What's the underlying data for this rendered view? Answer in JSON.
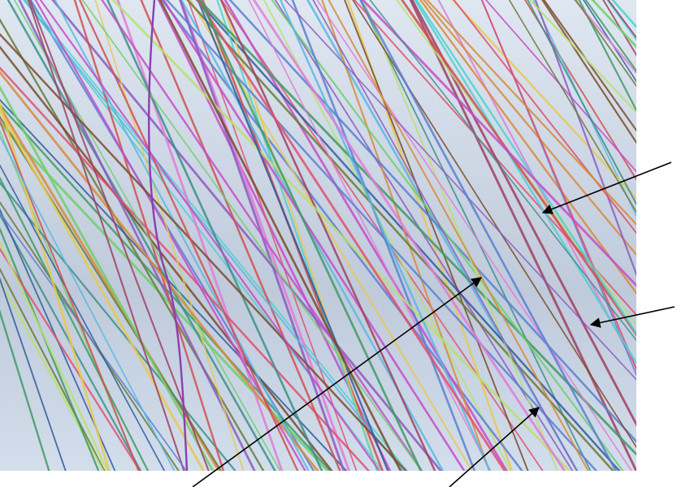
{
  "figure": {
    "background_color": "#ffffff",
    "panel_color_top": "#dfe7f1",
    "panel_color_mid": "#bfcadb",
    "panel_color_bottom": "#d3deec",
    "arrow_color": "#000000",
    "line_colors": [
      "#e0506e",
      "#5a7fd1",
      "#3f9a64",
      "#c64cc8",
      "#e9c84a",
      "#4ad1cf",
      "#8c5ac0",
      "#6fcf6a",
      "#d98a3a",
      "#6b7a3a",
      "#3d8f8a",
      "#a04060",
      "#b8e06a",
      "#e27bd6",
      "#2f5c9a",
      "#d05050",
      "#59b7e0",
      "#7a4c2a"
    ],
    "arrows": [
      {
        "name": "arrow-top-right"
      },
      {
        "name": "arrow-mid-right"
      },
      {
        "name": "arrow-bottom-left"
      },
      {
        "name": "arrow-bottom-center"
      }
    ]
  }
}
